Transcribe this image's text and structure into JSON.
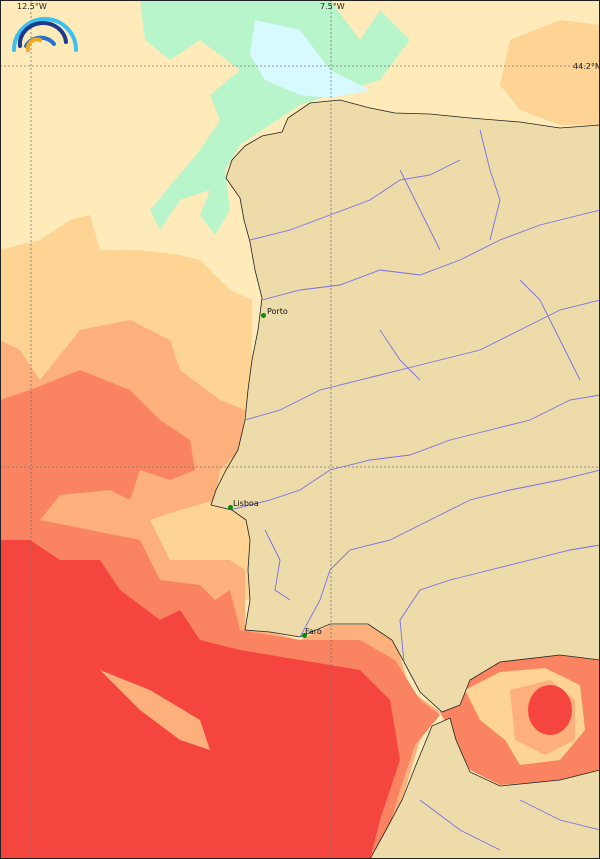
{
  "map": {
    "graticule": {
      "lon_labels": [
        "12.5°W",
        "7.5°W"
      ],
      "lat_labels": [
        "44.2°N"
      ]
    },
    "cities": [
      {
        "name": "Porto"
      },
      {
        "name": "Lisboa"
      },
      {
        "name": "Faro"
      }
    ],
    "colors": {
      "land": "#eddba9",
      "river": "#7a6ee8",
      "sea_coldest": "#d6faff",
      "sea_cold": "#b9f5cb",
      "sea_cool": "#feebb9",
      "sea_mild": "#fdd494",
      "sea_warm": "#fdb07c",
      "sea_warmer": "#fa8462",
      "sea_hot": "#f5453f",
      "city_marker": "#0a8a0a"
    },
    "logo": {
      "icon": "rainbow-arcs-logo"
    }
  }
}
